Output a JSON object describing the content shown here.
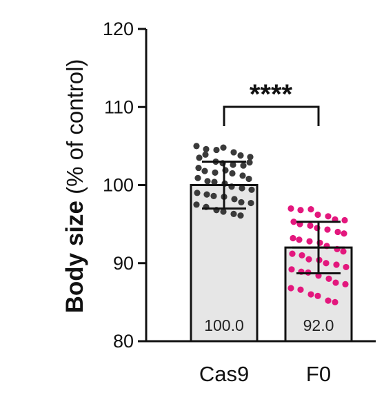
{
  "chart_data": {
    "type": "bar",
    "title": "",
    "xlabel": "",
    "ylabel_bold": "Body size",
    "ylabel_rest": " (% of control)",
    "ylim": [
      80,
      120
    ],
    "yticks": [
      "80",
      "90",
      "100",
      "110",
      "120"
    ],
    "grid": false,
    "categories": [
      "Cas9",
      "F0"
    ],
    "values": [
      100.0,
      92.0
    ],
    "value_labels": [
      "100.0",
      "92.0"
    ],
    "sd": [
      3.0,
      3.3
    ],
    "bar_color": "#e6e6e6",
    "significance": "****",
    "points": [
      {
        "category": "Cas9",
        "color": "#3a3a3a",
        "values": [
          105.0,
          104.6,
          104.5,
          104.8,
          104.2,
          103.8,
          103.6,
          103.5,
          103.9,
          103.0,
          102.8,
          102.6,
          102.5,
          102.9,
          102.2,
          101.8,
          101.6,
          101.9,
          101.5,
          101.2,
          100.8,
          100.9,
          100.5,
          100.4,
          100.2,
          99.8,
          99.6,
          99.4,
          99.0,
          98.8,
          98.6,
          98.5,
          98.2,
          97.8,
          97.7,
          97.5,
          97.2,
          96.8,
          96.6,
          96.3,
          96.1
        ]
      },
      {
        "category": "F0",
        "color": "#e3177d",
        "values": [
          97.0,
          96.8,
          96.9,
          96.2,
          96.0,
          95.6,
          95.5,
          95.3,
          95.0,
          94.8,
          94.5,
          94.3,
          94.0,
          93.8,
          93.2,
          93.0,
          92.8,
          92.6,
          92.2,
          91.8,
          91.5,
          91.2,
          91.0,
          90.5,
          90.4,
          90.0,
          89.8,
          89.5,
          89.2,
          88.9,
          88.8,
          88.4,
          88.0,
          87.5,
          87.3,
          86.8,
          86.6,
          86.0,
          85.8,
          85.2,
          85.0
        ]
      }
    ]
  }
}
